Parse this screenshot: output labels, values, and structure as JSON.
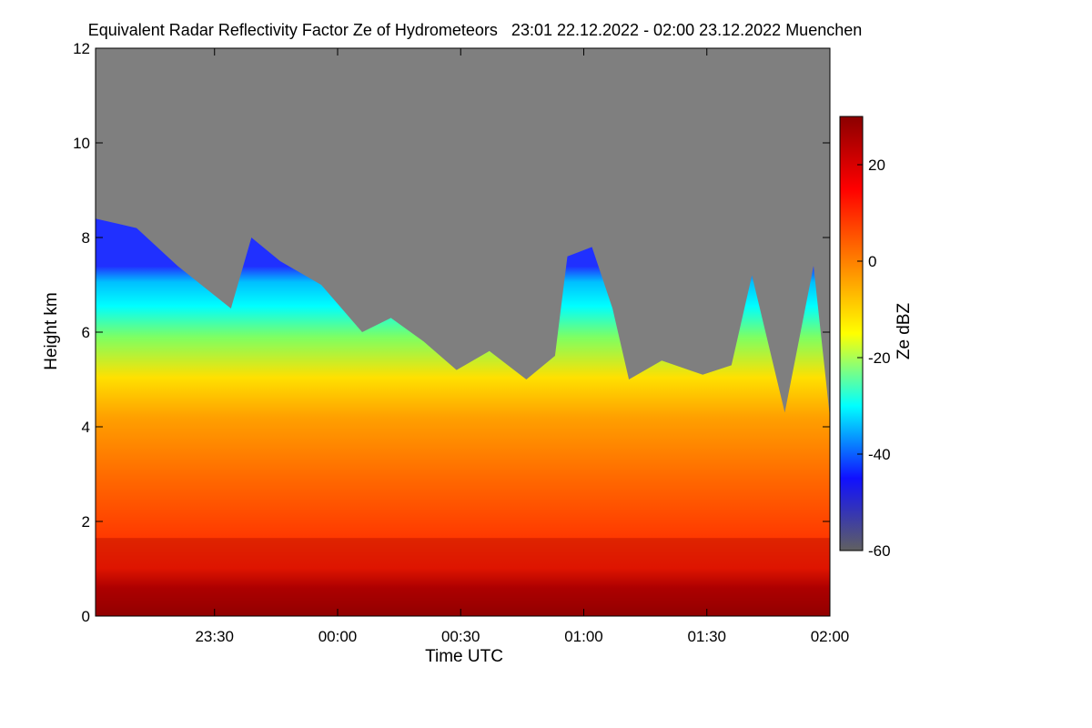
{
  "chart_data": {
    "type": "heatmap",
    "title": "Equivalent Radar Reflectivity Factor Ze of Hydrometeors   23:01 22.12.2022 - 02:00 23.12.2022 Muenchen",
    "xlabel": "Time UTC",
    "ylabel": "Height km",
    "colorbar_label": "Ze dBZ",
    "x_range": [
      "23:01",
      "02:00"
    ],
    "xlim_minutes": [
      0,
      179
    ],
    "x_ticks": [
      {
        "label": "23:30",
        "minute": 29
      },
      {
        "label": "00:00",
        "minute": 59
      },
      {
        "label": "00:30",
        "minute": 89
      },
      {
        "label": "01:00",
        "minute": 119
      },
      {
        "label": "01:30",
        "minute": 149
      },
      {
        "label": "02:00",
        "minute": 179
      }
    ],
    "ylim": [
      0,
      12
    ],
    "y_ticks": [
      "0",
      "2",
      "4",
      "6",
      "8",
      "10",
      "12"
    ],
    "colorbar_range": [
      -60,
      30
    ],
    "colorbar_ticks": [
      "-60",
      "-40",
      "-20",
      "0",
      "20"
    ],
    "no_data_color": "#7f7f7f",
    "colormap": [
      "#606060",
      "#1010ff",
      "#00ffff",
      "#ffff00",
      "#ff8000",
      "#ff0000",
      "#8b0000"
    ],
    "melting_layer_km": 1.4,
    "echo_top_km": [
      [
        0,
        8.4
      ],
      [
        10,
        8.2
      ],
      [
        20,
        7.4
      ],
      [
        33,
        6.5
      ],
      [
        38,
        8.0
      ],
      [
        45,
        7.5
      ],
      [
        55,
        7.0
      ],
      [
        65,
        6.0
      ],
      [
        72,
        6.3
      ],
      [
        80,
        5.8
      ],
      [
        88,
        5.2
      ],
      [
        96,
        5.6
      ],
      [
        105,
        5.0
      ],
      [
        112,
        5.5
      ],
      [
        115,
        7.6
      ],
      [
        121,
        7.8
      ],
      [
        126,
        6.5
      ],
      [
        130,
        5.0
      ],
      [
        138,
        5.4
      ],
      [
        148,
        5.1
      ],
      [
        155,
        5.3
      ],
      [
        160,
        7.2
      ],
      [
        168,
        4.3
      ],
      [
        175,
        7.4
      ],
      [
        179,
        4.2
      ]
    ]
  }
}
